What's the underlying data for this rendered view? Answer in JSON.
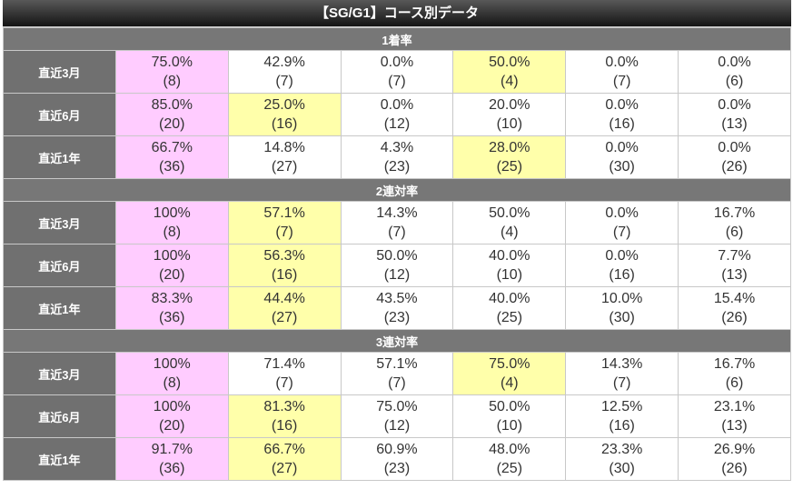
{
  "title": "【SG/G1】コース別データ",
  "colors": {
    "pink": "#ffccff",
    "yellow": "#ffffaa",
    "header": "#777777"
  },
  "sections": [
    {
      "label": "1着率",
      "rows": [
        {
          "label": "直近3月",
          "cells": [
            [
              "75.0%",
              "(8)",
              "pink"
            ],
            [
              "42.9%",
              "(7)",
              ""
            ],
            [
              "0.0%",
              "(7)",
              ""
            ],
            [
              "50.0%",
              "(4)",
              "yellow"
            ],
            [
              "0.0%",
              "(7)",
              ""
            ],
            [
              "0.0%",
              "(6)",
              ""
            ]
          ]
        },
        {
          "label": "直近6月",
          "cells": [
            [
              "85.0%",
              "(20)",
              "pink"
            ],
            [
              "25.0%",
              "(16)",
              "yellow"
            ],
            [
              "0.0%",
              "(12)",
              ""
            ],
            [
              "20.0%",
              "(10)",
              ""
            ],
            [
              "0.0%",
              "(16)",
              ""
            ],
            [
              "0.0%",
              "(13)",
              ""
            ]
          ]
        },
        {
          "label": "直近1年",
          "cells": [
            [
              "66.7%",
              "(36)",
              "pink"
            ],
            [
              "14.8%",
              "(27)",
              ""
            ],
            [
              "4.3%",
              "(23)",
              ""
            ],
            [
              "28.0%",
              "(25)",
              "yellow"
            ],
            [
              "0.0%",
              "(30)",
              ""
            ],
            [
              "0.0%",
              "(26)",
              ""
            ]
          ]
        }
      ]
    },
    {
      "label": "2連対率",
      "rows": [
        {
          "label": "直近3月",
          "cells": [
            [
              "100%",
              "(8)",
              "pink"
            ],
            [
              "57.1%",
              "(7)",
              "yellow"
            ],
            [
              "14.3%",
              "(7)",
              ""
            ],
            [
              "50.0%",
              "(4)",
              ""
            ],
            [
              "0.0%",
              "(7)",
              ""
            ],
            [
              "16.7%",
              "(6)",
              ""
            ]
          ]
        },
        {
          "label": "直近6月",
          "cells": [
            [
              "100%",
              "(20)",
              "pink"
            ],
            [
              "56.3%",
              "(16)",
              "yellow"
            ],
            [
              "50.0%",
              "(12)",
              ""
            ],
            [
              "40.0%",
              "(10)",
              ""
            ],
            [
              "0.0%",
              "(16)",
              ""
            ],
            [
              "7.7%",
              "(13)",
              ""
            ]
          ]
        },
        {
          "label": "直近1年",
          "cells": [
            [
              "83.3%",
              "(36)",
              "pink"
            ],
            [
              "44.4%",
              "(27)",
              "yellow"
            ],
            [
              "43.5%",
              "(23)",
              ""
            ],
            [
              "40.0%",
              "(25)",
              ""
            ],
            [
              "10.0%",
              "(30)",
              ""
            ],
            [
              "15.4%",
              "(26)",
              ""
            ]
          ]
        }
      ]
    },
    {
      "label": "3連対率",
      "rows": [
        {
          "label": "直近3月",
          "cells": [
            [
              "100%",
              "(8)",
              "pink"
            ],
            [
              "71.4%",
              "(7)",
              ""
            ],
            [
              "57.1%",
              "(7)",
              ""
            ],
            [
              "75.0%",
              "(4)",
              "yellow"
            ],
            [
              "14.3%",
              "(7)",
              ""
            ],
            [
              "16.7%",
              "(6)",
              ""
            ]
          ]
        },
        {
          "label": "直近6月",
          "cells": [
            [
              "100%",
              "(20)",
              "pink"
            ],
            [
              "81.3%",
              "(16)",
              "yellow"
            ],
            [
              "75.0%",
              "(12)",
              ""
            ],
            [
              "50.0%",
              "(10)",
              ""
            ],
            [
              "12.5%",
              "(16)",
              ""
            ],
            [
              "23.1%",
              "(13)",
              ""
            ]
          ]
        },
        {
          "label": "直近1年",
          "cells": [
            [
              "91.7%",
              "(36)",
              "pink"
            ],
            [
              "66.7%",
              "(27)",
              "yellow"
            ],
            [
              "60.9%",
              "(23)",
              ""
            ],
            [
              "48.0%",
              "(25)",
              ""
            ],
            [
              "23.3%",
              "(30)",
              ""
            ],
            [
              "26.9%",
              "(26)",
              ""
            ]
          ]
        }
      ]
    }
  ]
}
